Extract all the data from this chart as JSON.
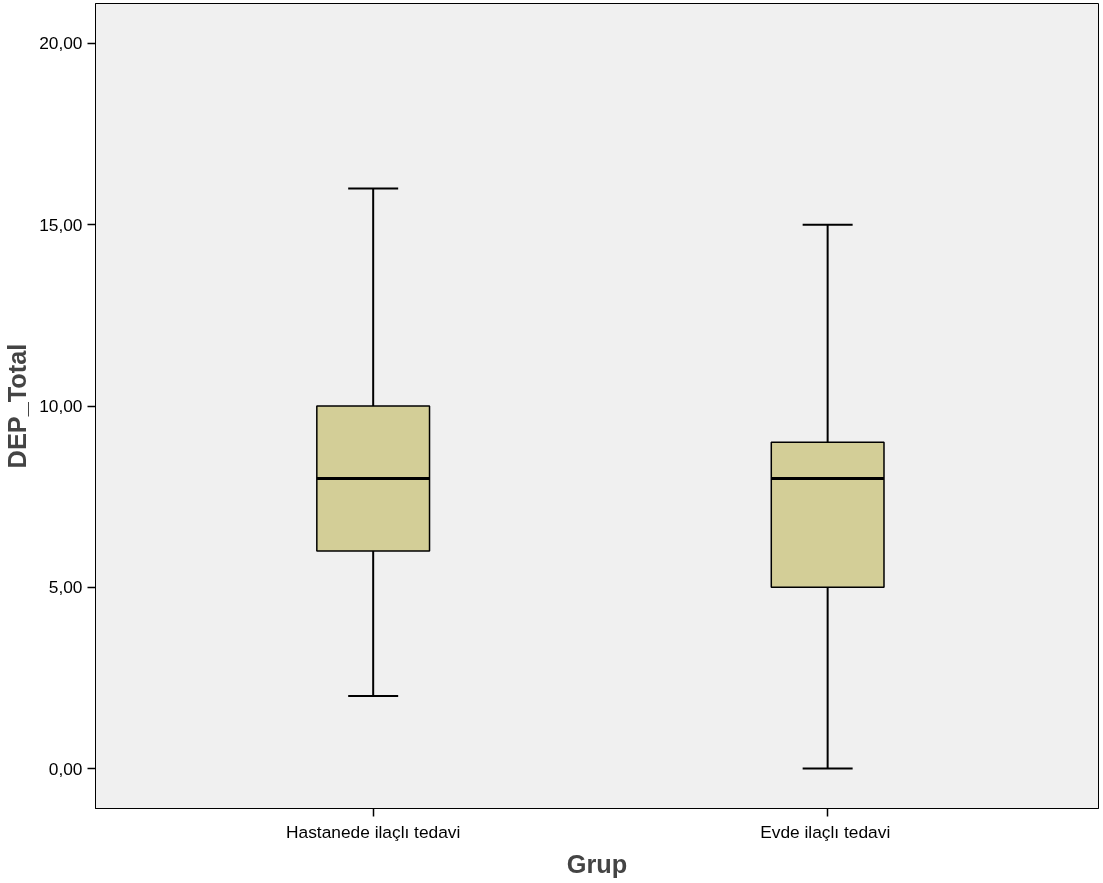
{
  "chart_data": {
    "type": "box",
    "xlabel": "Grup",
    "ylabel": "DEP_Total",
    "categories": [
      "Hastanede ilaçlı tedavi",
      "Evde  ilaçlı tedavi"
    ],
    "boxes": [
      {
        "low": 2,
        "q1": 6,
        "median": 8,
        "q3": 10,
        "high": 16
      },
      {
        "low": 0,
        "q1": 5,
        "median": 8,
        "q3": 9,
        "high": 15
      }
    ],
    "color": "#d3ce97",
    "ylim": [
      -1.1,
      21.1
    ],
    "yticks": [
      {
        "value": 0,
        "label": "0,00"
      },
      {
        "value": 5,
        "label": "5,00"
      },
      {
        "value": 10,
        "label": "10,00"
      },
      {
        "value": 15,
        "label": "15,00"
      },
      {
        "value": 20,
        "label": "20,00"
      }
    ],
    "grid": false
  }
}
